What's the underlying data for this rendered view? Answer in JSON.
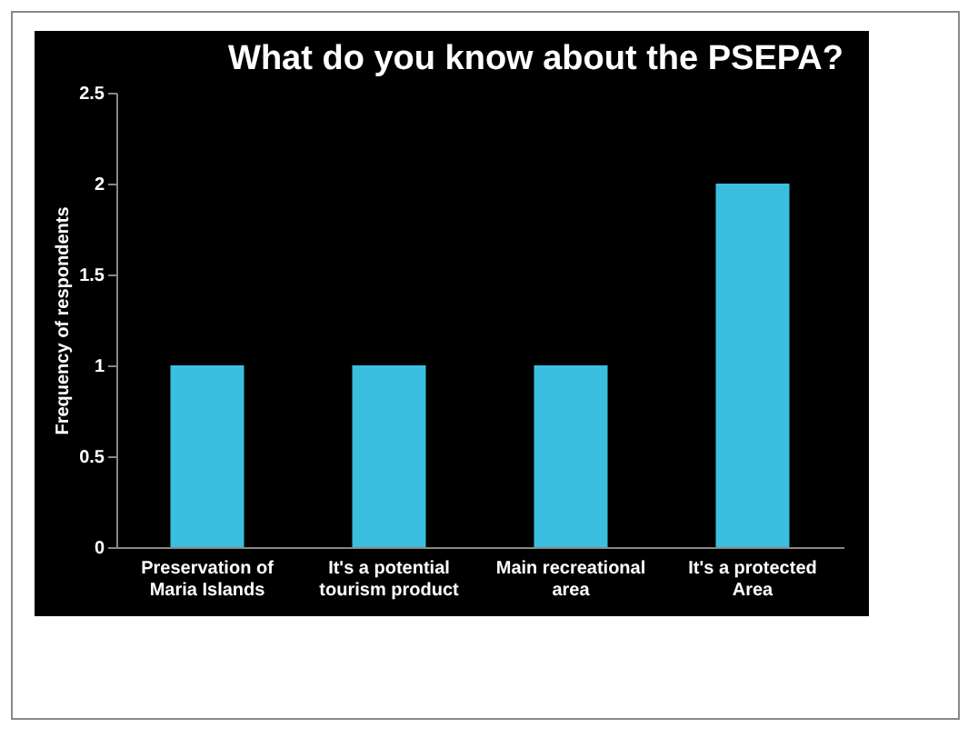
{
  "chart_data": {
    "type": "bar",
    "title": "What do you know about the PSEPA?",
    "ylabel": "Frequency of respondents",
    "categories": [
      "Preservation of Maria Islands",
      "It's a potential tourism product",
      "Main recreational area",
      "It's a protected Area"
    ],
    "values": [
      1,
      1,
      1,
      2
    ],
    "color": "#3bbfe0",
    "ylim": [
      0,
      2.5
    ],
    "yticks": [
      0,
      0.5,
      1,
      1.5,
      2,
      2.5
    ],
    "grid": false
  }
}
